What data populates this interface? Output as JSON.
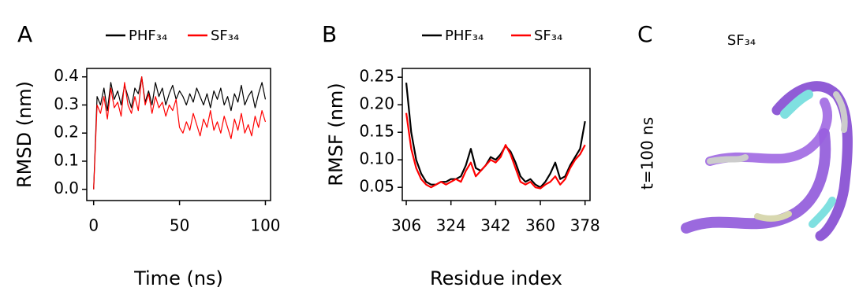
{
  "chart_data": [
    {
      "type": "line",
      "panel_label": "A",
      "xlabel": "Time (ns)",
      "ylabel": "RMSD (nm)",
      "x": [
        0,
        2,
        4,
        6,
        8,
        10,
        12,
        14,
        16,
        18,
        20,
        22,
        24,
        26,
        28,
        30,
        32,
        34,
        36,
        38,
        40,
        42,
        44,
        46,
        48,
        50,
        52,
        54,
        56,
        58,
        60,
        62,
        64,
        66,
        68,
        70,
        72,
        74,
        76,
        78,
        80,
        82,
        84,
        86,
        88,
        90,
        92,
        94,
        96,
        98,
        100
      ],
      "series": [
        {
          "name": "PHF₃₄",
          "color": "#000000",
          "values": [
            0.0,
            0.33,
            0.3,
            0.36,
            0.28,
            0.38,
            0.32,
            0.35,
            0.3,
            0.37,
            0.33,
            0.29,
            0.36,
            0.34,
            0.4,
            0.31,
            0.35,
            0.3,
            0.38,
            0.33,
            0.36,
            0.3,
            0.34,
            0.37,
            0.32,
            0.35,
            0.33,
            0.3,
            0.34,
            0.31,
            0.36,
            0.33,
            0.3,
            0.34,
            0.29,
            0.35,
            0.32,
            0.36,
            0.3,
            0.33,
            0.28,
            0.34,
            0.31,
            0.37,
            0.3,
            0.33,
            0.35,
            0.29,
            0.34,
            0.38,
            0.32
          ]
        },
        {
          "name": "SF₃₄",
          "color": "#ff0000",
          "values": [
            0.0,
            0.3,
            0.27,
            0.33,
            0.25,
            0.36,
            0.29,
            0.31,
            0.26,
            0.38,
            0.3,
            0.27,
            0.33,
            0.28,
            0.4,
            0.3,
            0.34,
            0.27,
            0.33,
            0.29,
            0.31,
            0.26,
            0.3,
            0.28,
            0.32,
            0.22,
            0.2,
            0.24,
            0.21,
            0.27,
            0.23,
            0.19,
            0.25,
            0.22,
            0.28,
            0.21,
            0.24,
            0.2,
            0.26,
            0.22,
            0.18,
            0.25,
            0.21,
            0.27,
            0.2,
            0.23,
            0.19,
            0.26,
            0.22,
            0.28,
            0.24
          ]
        }
      ],
      "xlim": [
        -4,
        103
      ],
      "xticks": [
        0,
        50,
        100
      ],
      "ylim": [
        -0.04,
        0.43
      ],
      "yticks": [
        {
          "value": 0,
          "label": "0.0"
        },
        0.1,
        0.2,
        0.3,
        0.4
      ]
    },
    {
      "type": "line",
      "panel_label": "B",
      "xlabel": "Residue index",
      "ylabel": "RMSF (nm)",
      "x": [
        306,
        308,
        310,
        312,
        314,
        316,
        318,
        320,
        322,
        324,
        326,
        328,
        330,
        332,
        334,
        336,
        338,
        340,
        342,
        344,
        346,
        348,
        350,
        352,
        354,
        356,
        358,
        360,
        362,
        364,
        366,
        368,
        370,
        372,
        374,
        376,
        378
      ],
      "series": [
        {
          "name": "PHF₃₄",
          "color": "#000000",
          "values": [
            0.24,
            0.15,
            0.1,
            0.075,
            0.06,
            0.055,
            0.055,
            0.06,
            0.06,
            0.065,
            0.065,
            0.07,
            0.09,
            0.12,
            0.085,
            0.08,
            0.09,
            0.105,
            0.1,
            0.11,
            0.125,
            0.115,
            0.095,
            0.07,
            0.06,
            0.065,
            0.055,
            0.05,
            0.06,
            0.075,
            0.095,
            0.065,
            0.07,
            0.09,
            0.105,
            0.12,
            0.17
          ]
        },
        {
          "name": "SF₃₄",
          "color": "#ff0000",
          "values": [
            0.185,
            0.12,
            0.085,
            0.065,
            0.055,
            0.05,
            0.055,
            0.06,
            0.055,
            0.06,
            0.065,
            0.06,
            0.08,
            0.095,
            0.07,
            0.08,
            0.09,
            0.1,
            0.095,
            0.105,
            0.127,
            0.11,
            0.085,
            0.06,
            0.055,
            0.06,
            0.05,
            0.048,
            0.055,
            0.06,
            0.07,
            0.055,
            0.065,
            0.085,
            0.1,
            0.11,
            0.127
          ]
        }
      ],
      "xlim": [
        304.4,
        380
      ],
      "xticks": [
        306,
        324,
        342,
        360,
        378
      ],
      "ylim": [
        0.026,
        0.266
      ],
      "yticks": [
        0.05,
        {
          "value": 0.1,
          "label": "0.10"
        },
        0.15,
        {
          "value": 0.2,
          "label": "0.20"
        },
        0.25
      ]
    }
  ],
  "panel_c": {
    "panel_label": "C",
    "title": "SF₃₄",
    "time_label": "t=100 ns"
  }
}
